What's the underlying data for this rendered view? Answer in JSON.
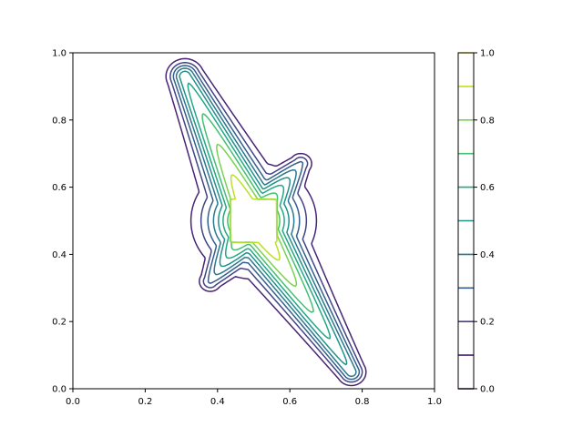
{
  "chart_data": {
    "type": "contour",
    "title": "",
    "xlabel": "",
    "ylabel": "",
    "xlim": [
      0,
      1
    ],
    "ylim": [
      0,
      1
    ],
    "x_ticks": [
      "0.0",
      "0.2",
      "0.4",
      "0.6",
      "0.8",
      "1.0"
    ],
    "y_ticks": [
      "0.0",
      "0.2",
      "0.4",
      "0.6",
      "0.8",
      "1.0"
    ],
    "x_tick_values": [
      0,
      0.2,
      0.4,
      0.6,
      0.8,
      1.0
    ],
    "y_tick_values": [
      0,
      0.2,
      0.4,
      0.6,
      0.8,
      1.0
    ],
    "grid": false,
    "colormap": "viridis",
    "levels": [
      0.0,
      0.1,
      0.2,
      0.3,
      0.4,
      0.5,
      0.6,
      0.7,
      0.8,
      0.9,
      1.0
    ],
    "level_colors": [
      "#440154",
      "#482475",
      "#414487",
      "#355f8d",
      "#2a788e",
      "#21918c",
      "#22a884",
      "#44bf70",
      "#7ad151",
      "#bddf26",
      "#fde725"
    ],
    "colorbar": {
      "ticks": [
        "0.0",
        "0.2",
        "0.4",
        "0.6",
        "0.8",
        "1.0"
      ],
      "tick_values": [
        0,
        0.2,
        0.4,
        0.6,
        0.8,
        1.0
      ],
      "range": [
        0,
        1
      ]
    },
    "shape": {
      "description_values": "four-lobed star; high-value square plateau center",
      "center": [
        0.5,
        0.5
      ],
      "plateau_box": [
        0.44,
        0.56,
        0.44,
        0.56
      ],
      "lobe_tips": [
        [
          0.32,
          0.98
        ],
        [
          0.79,
          0.02
        ],
        [
          0.65,
          0.7
        ],
        [
          0.36,
          0.29
        ]
      ]
    }
  }
}
